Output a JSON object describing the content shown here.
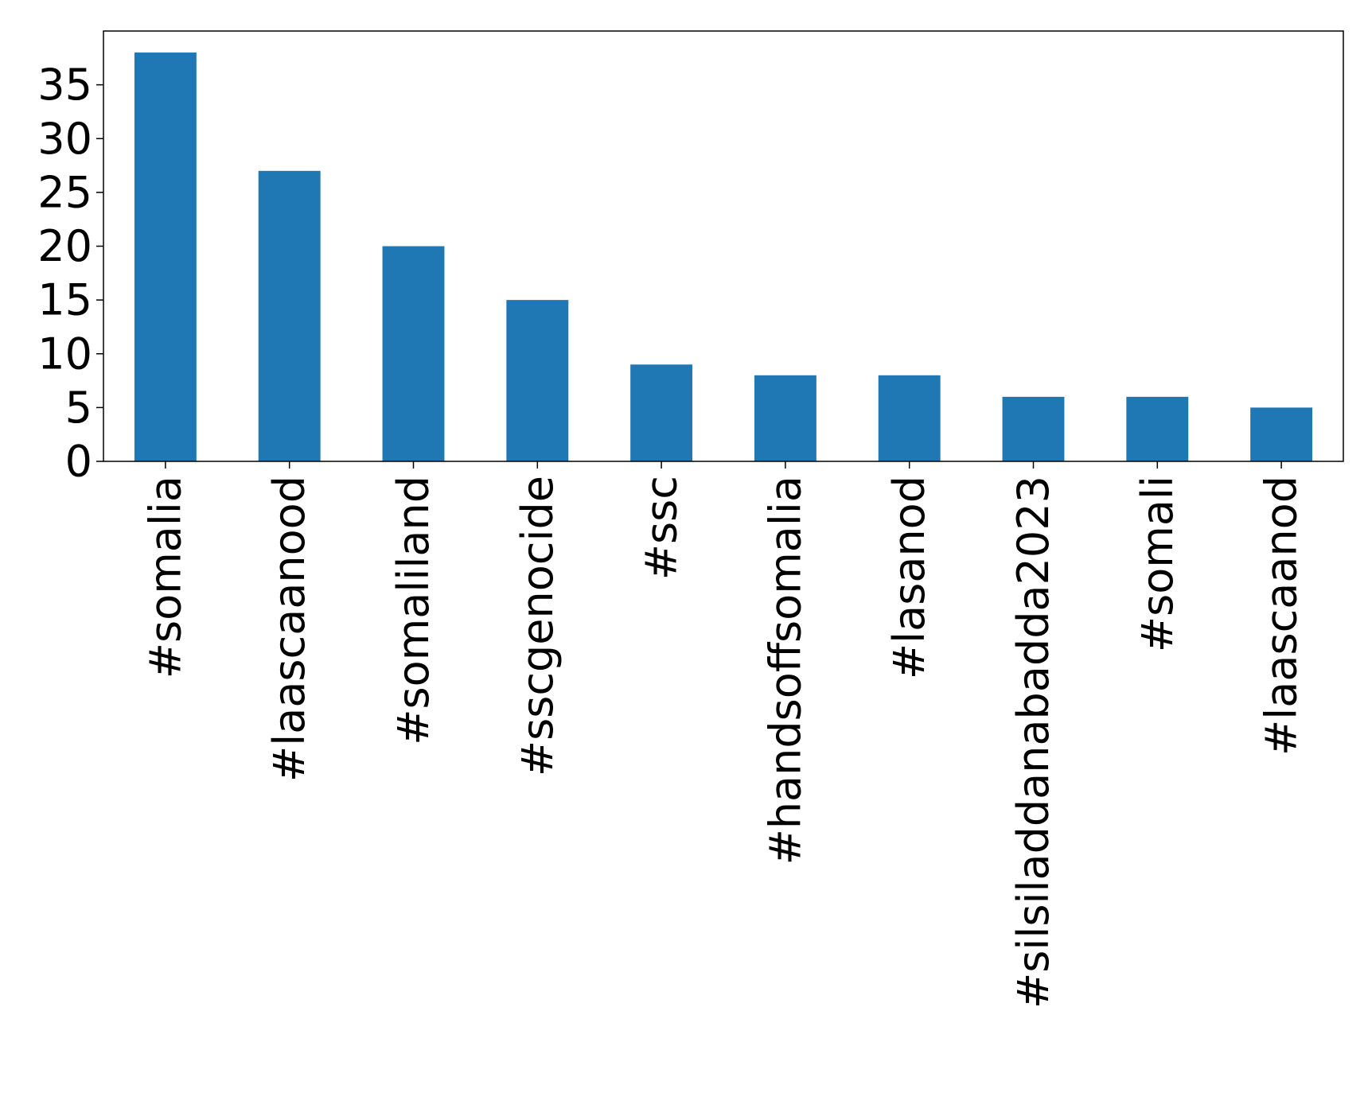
{
  "chart_data": {
    "type": "bar",
    "title": "",
    "xlabel": "",
    "ylabel": "",
    "categories": [
      "#somalia",
      "#laascaanood",
      "#somaliland",
      "#sscgenocide",
      "#ssc",
      "#handsoffsomalia",
      "#lasanod",
      "#silsiladdanabadda2023",
      "#somali",
      "#laascaanod"
    ],
    "values": [
      38,
      27,
      20,
      15,
      9,
      8,
      8,
      6,
      6,
      5
    ],
    "ylim": [
      0,
      40
    ],
    "yticks": [
      0,
      5,
      10,
      15,
      20,
      25,
      30,
      35
    ],
    "grid": false,
    "legend": "none",
    "bar_color": "#1f77b4"
  }
}
